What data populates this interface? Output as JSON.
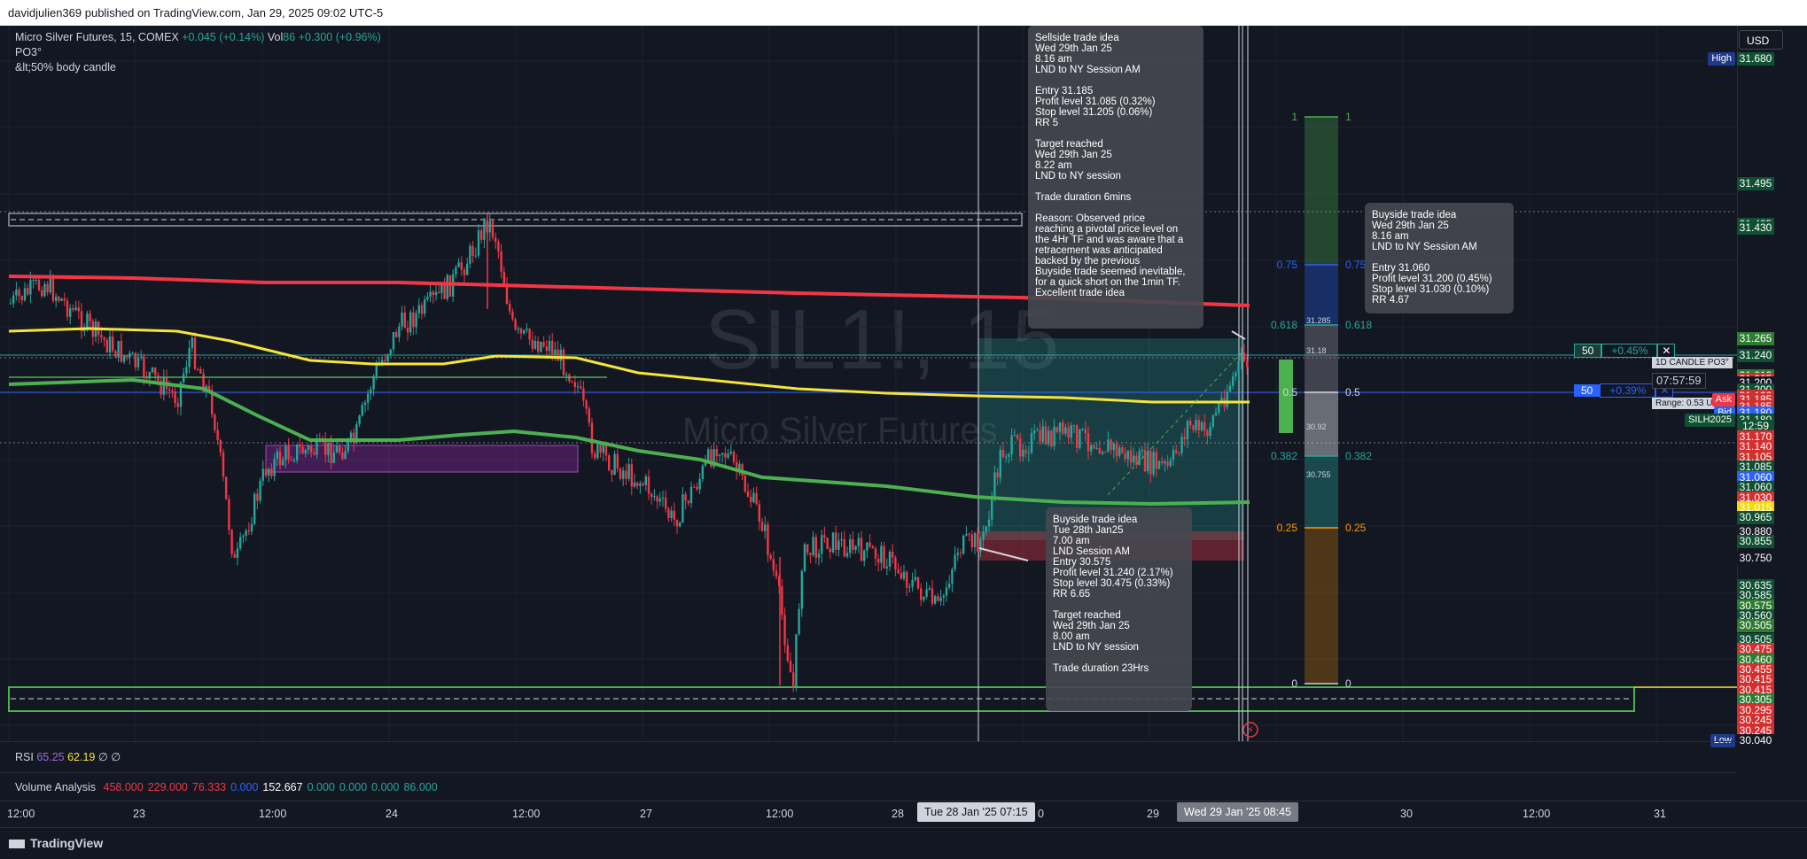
{
  "header": {
    "author_line": "davidjulien369 published on TradingView.com, Jan 29, 2025 09:02 UTC-5"
  },
  "symbol": {
    "name": "Micro Silver Futures, 15, COMEX",
    "change": "+0.045 (+0.14%)",
    "vol_label": "Vol",
    "vol_value": "86",
    "vol_change": "+0.300 (+0.96%)"
  },
  "indicators": {
    "po3": "PO3°",
    "body_candle": "&lt;50% body candle"
  },
  "watermark": {
    "ticker": "SIL1!, 15",
    "desc": "Micro Silver Futures"
  },
  "currency": "USD",
  "notes": {
    "sellside": "Sellside trade idea\nWed 29th Jan 25\n8.16 am\nLND to NY Session AM\n\nEntry 31.185\nProfit level 31.085 (0.32%)\nStop level 31.205 (0.06%)\nRR 5\n\nTarget reached\nWed 29th Jan 25\n8.22 am\nLND to NY session\n\nTrade duration 6mins\n\nReason: Observed price\nreaching a pivotal price level on\nthe 4Hr TF and was aware that a\nretracement was anticipated\nbacked by the previous\nBuyside trade seemed inevitable,\nfor a quick short on the 1min TF.\nExcellent trade idea",
    "buyside_right": "Buyside trade idea\nWed 29th Jan 25\n8.16 am\nLND to NY Session AM\n\nEntry 31.060\nProfit level 31.200 (0.45%)\nStop level 31.030 (0.10%)\nRR 4.67",
    "buyside_left": "Buyside trade idea\nTue 28th Jan25\n7.00 am\nLND Session AM\nEntry 30.575\nProfit level 31.240 (2.17%)\nStop level 30.475 (0.33%)\nRR 6.65\n\nTarget reached\nWed 29th Jan 25\n8.00 am\nLND to NY session\n\nTrade duration 23Hrs"
  },
  "price_labels": [
    {
      "text": "High",
      "p": 31.68,
      "kind": "tag",
      "color": "#1e3a8a"
    },
    {
      "text": "31.680",
      "p": 31.68,
      "color": "#0f5132"
    },
    {
      "text": "31.495",
      "p": 31.495,
      "color": "#0f5132"
    },
    {
      "text": "31.435",
      "p": 31.435,
      "color": "#0f5132"
    },
    {
      "text": "31.430",
      "p": 31.43,
      "color": "#0f5132"
    },
    {
      "text": "31.265",
      "p": 31.265,
      "color": "#2e7d32"
    },
    {
      "text": "31.240",
      "p": 31.24,
      "color": "#0f5132"
    },
    {
      "text": "31.210",
      "p": 31.21,
      "color": "#2e7d32"
    },
    {
      "text": "31.205",
      "p": 31.205,
      "color": "#d32f2f"
    },
    {
      "text": "31.200",
      "p": 31.2,
      "color": "#131722"
    },
    {
      "text": "31.200",
      "p": 31.19,
      "color": "#0f5132"
    },
    {
      "text": "31.190",
      "p": 31.18,
      "color": "#d32f2f"
    },
    {
      "text": "Ask",
      "p": 31.175,
      "kind": "tag",
      "color": "#f23645"
    },
    {
      "text": "31.185",
      "p": 31.175,
      "color": "#d32f2f"
    },
    {
      "text": "31.185",
      "p": 31.165,
      "color": "#d32f2f"
    },
    {
      "text": "Bid",
      "p": 31.155,
      "kind": "tag",
      "color": "#2962ff"
    },
    {
      "text": "31.180",
      "p": 31.155,
      "color": "#2962ff"
    },
    {
      "text": "SILH2025",
      "p": 31.145,
      "kind": "tag",
      "color": "#0f5132"
    },
    {
      "text": "31.180",
      "p": 31.145,
      "color": "#0f5132"
    },
    {
      "text": "12:59",
      "p": 31.135,
      "color": "#0f5132"
    },
    {
      "text": "31.170",
      "p": 31.12,
      "color": "#d32f2f"
    },
    {
      "text": "31.140",
      "p": 31.105,
      "color": "#d32f2f"
    },
    {
      "text": "31.105",
      "p": 31.09,
      "color": "#d32f2f"
    },
    {
      "text": "31.085",
      "p": 31.075,
      "color": "#0f5132"
    },
    {
      "text": "31.060",
      "p": 31.06,
      "color": "#2962ff"
    },
    {
      "text": "31.060",
      "p": 31.045,
      "color": "#0f5132"
    },
    {
      "text": "31.030",
      "p": 31.03,
      "color": "#d32f2f"
    },
    {
      "text": "31.015",
      "p": 31.015,
      "color": "#f5d90a"
    },
    {
      "text": "30.965",
      "p": 31.0,
      "color": "#0f5132"
    },
    {
      "text": "30.880",
      "p": 30.98,
      "color": "#1a1d26"
    },
    {
      "text": "30.855",
      "p": 30.965,
      "color": "#0f5132"
    },
    {
      "text": "30.750",
      "p": 30.94,
      "color": "#131722"
    },
    {
      "text": "30.635",
      "p": 30.9,
      "color": "#0f5132"
    },
    {
      "text": "30.585",
      "p": 30.885,
      "color": "#0f5132"
    },
    {
      "text": "30.575",
      "p": 30.87,
      "color": "#2e7d32"
    },
    {
      "text": "30.560",
      "p": 30.855,
      "color": "#0f5132"
    },
    {
      "text": "30.505",
      "p": 30.84,
      "color": "#2e7d32"
    },
    {
      "text": "30.505",
      "p": 30.82,
      "color": "#0f5132"
    },
    {
      "text": "30.475",
      "p": 30.805,
      "color": "#d32f2f"
    },
    {
      "text": "30.460",
      "p": 30.79,
      "color": "#2e7d32"
    },
    {
      "text": "30.455",
      "p": 30.775,
      "color": "#d32f2f"
    },
    {
      "text": "30.415",
      "p": 30.76,
      "color": "#d32f2f"
    },
    {
      "text": "30.415",
      "p": 30.745,
      "color": "#d32f2f"
    },
    {
      "text": "30.305",
      "p": 30.73,
      "color": "#2e7d32"
    },
    {
      "text": "30.295",
      "p": 30.715,
      "color": "#d32f2f"
    },
    {
      "text": "30.245",
      "p": 30.7,
      "color": "#d32f2f"
    },
    {
      "text": "30.245",
      "p": 30.685,
      "color": "#d32f2f"
    },
    {
      "text": "Low",
      "p": 30.67,
      "kind": "tag",
      "color": "#1e3a8a"
    },
    {
      "text": "30.040",
      "p": 30.67,
      "color": "#131722"
    }
  ],
  "fib": {
    "levels": [
      {
        "label": "0",
        "value": "0"
      },
      {
        "label": "0.25",
        "value": "0.25"
      },
      {
        "label": "0.382",
        "value": "0.382"
      },
      {
        "label": "0.5",
        "value": "0.5"
      },
      {
        "label": "0.618",
        "value": "0.618"
      },
      {
        "label": "0.75",
        "value": "0.75"
      },
      {
        "label": "1",
        "value": "1"
      }
    ],
    "inner": [
      "31.285",
      "31.18",
      "30.92",
      "30.755"
    ]
  },
  "positions": [
    {
      "qty": "50",
      "pct": "+0.45%",
      "close": "✕",
      "color": "#26a69a"
    },
    {
      "qty": "50",
      "pct": "+0.39%",
      "close": "✕",
      "color": "#2962ff"
    }
  ],
  "candle_box": {
    "title": "1D CANDLE PO3°",
    "timer": "07:57:59",
    "range": "Range: 0.53 USD"
  },
  "panes": {
    "rsi_label": "RSI",
    "rsi_v1": "65.25",
    "rsi_v2": "62.19",
    "rsi_v3": "∅ ∅",
    "vol_label": "Volume Analysis",
    "vol_values": [
      {
        "v": "458.000",
        "c": "#f23645"
      },
      {
        "v": "229.000",
        "c": "#f23645"
      },
      {
        "v": "76.333",
        "c": "#f23645"
      },
      {
        "v": "0.000",
        "c": "#2962ff"
      },
      {
        "v": "152.667",
        "c": "#ffffff"
      },
      {
        "v": "0.000",
        "c": "#26a69a"
      },
      {
        "v": "0.000",
        "c": "#26a69a"
      },
      {
        "v": "0.000",
        "c": "#26a69a"
      },
      {
        "v": "86.000",
        "c": "#26a69a"
      }
    ]
  },
  "time_axis": [
    "12:00",
    "23",
    "12:00",
    "24",
    "12:00",
    "27",
    "12:00",
    "28",
    "0",
    "29",
    "30",
    "12:00",
    "31"
  ],
  "time_cursors": [
    "Tue 28 Jan '25   07:15",
    "Wed 29 Jan '25   08:45"
  ],
  "footer": {
    "logo": "TradingView"
  },
  "colors": {
    "bg": "#131722",
    "up": "#26a69a",
    "down": "#f23645",
    "red_ma": "#f23645",
    "yellow_ma": "#f5e53a",
    "green_ma": "#4caf50"
  }
}
